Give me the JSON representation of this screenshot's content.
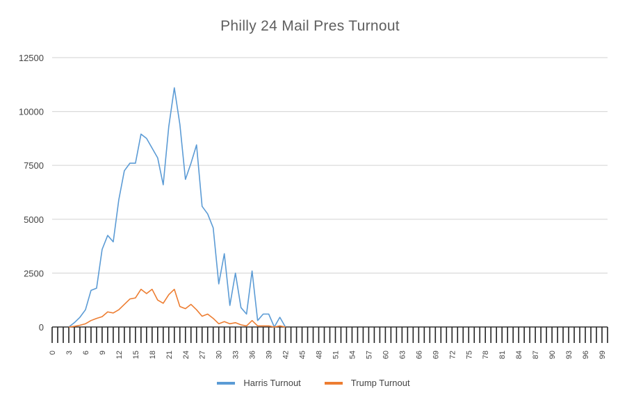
{
  "chart_data": {
    "type": "line",
    "title": "Philly 24 Mail Pres Turnout",
    "xlabel": "",
    "ylabel": "",
    "ylim": [
      0,
      12500
    ],
    "yticks": [
      0,
      2500,
      5000,
      7500,
      10000,
      12500
    ],
    "x_range": [
      0,
      100
    ],
    "x_tick_labels": [
      "0",
      "3",
      "6",
      "9",
      "12",
      "15",
      "18",
      "21",
      "24",
      "27",
      "30",
      "33",
      "36",
      "39",
      "42",
      "45",
      "48",
      "51",
      "54",
      "57",
      "60",
      "63",
      "66",
      "69",
      "72",
      "75",
      "78",
      "81",
      "84",
      "87",
      "90",
      "93",
      "96",
      "99"
    ],
    "grid": true,
    "legend_position": "bottom",
    "series": [
      {
        "name": "Harris Turnout",
        "color": "#5b9bd5",
        "x": [
          3,
          4,
          5,
          6,
          7,
          8,
          9,
          10,
          11,
          12,
          13,
          14,
          15,
          16,
          17,
          18,
          19,
          20,
          21,
          22,
          23,
          24,
          25,
          26,
          27,
          28,
          29,
          30,
          31,
          32,
          33,
          34,
          35,
          36,
          37,
          38,
          39,
          40,
          41,
          42
        ],
        "values": [
          0,
          200,
          450,
          800,
          1700,
          1800,
          3600,
          4250,
          3950,
          5900,
          7250,
          7600,
          7600,
          8950,
          8750,
          8300,
          7850,
          6600,
          9300,
          11100,
          9400,
          6850,
          7600,
          8450,
          5600,
          5250,
          4600,
          2000,
          3400,
          1000,
          2500,
          900,
          600,
          2600,
          300,
          600,
          600,
          0,
          450,
          0
        ]
      },
      {
        "name": "Trump Turnout",
        "color": "#ed7d31",
        "x": [
          3,
          4,
          5,
          6,
          7,
          8,
          9,
          10,
          11,
          12,
          13,
          14,
          15,
          16,
          17,
          18,
          19,
          20,
          21,
          22,
          23,
          24,
          25,
          26,
          27,
          28,
          29,
          30,
          31,
          32,
          33,
          34,
          35,
          36,
          37,
          38,
          39,
          40,
          41,
          42
        ],
        "values": [
          0,
          30,
          80,
          150,
          300,
          400,
          480,
          700,
          650,
          800,
          1050,
          1300,
          1350,
          1750,
          1550,
          1750,
          1250,
          1100,
          1500,
          1750,
          950,
          850,
          1050,
          800,
          500,
          600,
          400,
          150,
          250,
          150,
          200,
          100,
          50,
          300,
          50,
          50,
          50,
          0,
          50,
          0
        ]
      }
    ]
  }
}
